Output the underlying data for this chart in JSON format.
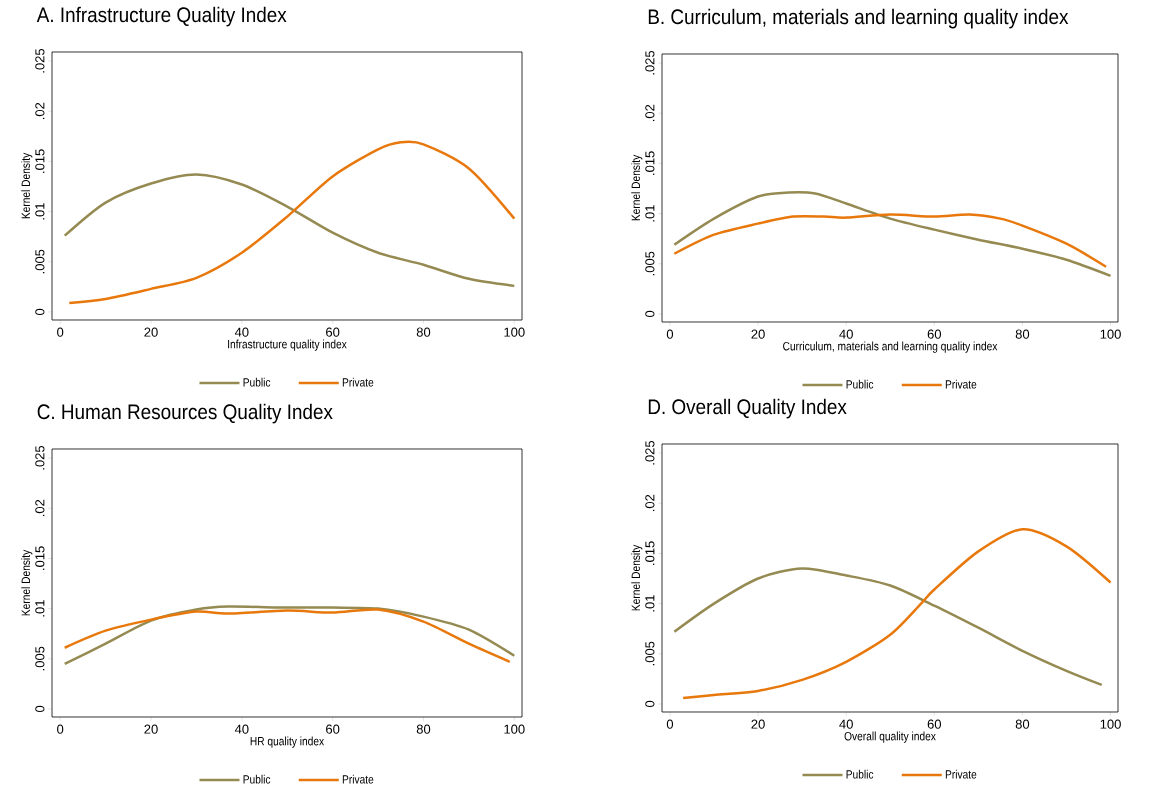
{
  "chart_data": [
    {
      "type": "line",
      "title": "A.  Infrastructure Quality Index",
      "xlabel": "Infrastructure quality index",
      "ylabel": "Kernel Density",
      "legend": "bottom",
      "xlim": [
        -1.8,
        101.7
      ],
      "ylim": [
        -0.0008,
        0.0259
      ],
      "xticks": [
        0,
        20,
        40,
        60,
        80,
        100
      ],
      "yticks": [
        0,
        {
          "value": 0.005,
          "label": ".005"
        },
        {
          "value": 0.01,
          "label": ".01"
        },
        {
          "value": 0.015,
          "label": ".015"
        },
        {
          "value": 0.02,
          "label": ".02"
        },
        {
          "value": 0.025,
          "label": ".025"
        }
      ],
      "series": [
        {
          "name": "Public",
          "color": "#958a52",
          "x": [
            1,
            10,
            20,
            30,
            40,
            50,
            60,
            70,
            80,
            90,
            100
          ],
          "values": [
            0.0076,
            0.0109,
            0.0128,
            0.0137,
            0.0127,
            0.0105,
            0.0079,
            0.0059,
            0.0047,
            0.0033,
            0.0026
          ]
        },
        {
          "name": "Private",
          "color": "#e8780c",
          "x": [
            2,
            10,
            20,
            30,
            40,
            50,
            60,
            70,
            75,
            80,
            90,
            100
          ],
          "values": [
            0.0009,
            0.0013,
            0.0023,
            0.0034,
            0.0059,
            0.0095,
            0.0135,
            0.0162,
            0.0169,
            0.0167,
            0.0143,
            0.0093
          ]
        }
      ]
    },
    {
      "type": "line",
      "title": "B.  Curriculum, materials and learning quality index",
      "xlabel": "Curriculum, materials and learning quality index",
      "ylabel": "Kernel Density",
      "legend": "bottom",
      "xlim": [
        -1.8,
        101.7
      ],
      "ylim": [
        -0.0008,
        0.0259
      ],
      "xticks": [
        0,
        20,
        40,
        60,
        80,
        100
      ],
      "yticks": [
        0,
        {
          "value": 0.005,
          "label": ".005"
        },
        {
          "value": 0.01,
          "label": ".01"
        },
        {
          "value": 0.015,
          "label": ".015"
        },
        {
          "value": 0.02,
          "label": ".02"
        },
        {
          "value": 0.025,
          "label": ".025"
        }
      ],
      "series": [
        {
          "name": "Public",
          "color": "#958a52",
          "x": [
            1,
            10,
            20,
            27,
            33,
            40,
            50,
            60,
            70,
            80,
            90,
            100
          ],
          "values": [
            0.0069,
            0.0095,
            0.0117,
            0.0121,
            0.012,
            0.011,
            0.0095,
            0.0084,
            0.0074,
            0.0065,
            0.0054,
            0.0038
          ]
        },
        {
          "name": "Private",
          "color": "#e8780c",
          "x": [
            1,
            10,
            20,
            28,
            35,
            40,
            50,
            60,
            68,
            75,
            80,
            90,
            99
          ],
          "values": [
            0.006,
            0.0079,
            0.009,
            0.0097,
            0.0097,
            0.0096,
            0.0099,
            0.0097,
            0.0099,
            0.0095,
            0.0088,
            0.007,
            0.0047
          ]
        }
      ]
    },
    {
      "type": "line",
      "title": "C.  Human Resources Quality Index",
      "xlabel": "HR quality index",
      "ylabel": "Kernel Density",
      "legend": "bottom",
      "xlim": [
        -1.8,
        101.7
      ],
      "ylim": [
        -0.0008,
        0.0259
      ],
      "xticks": [
        0,
        20,
        40,
        60,
        80,
        100
      ],
      "yticks": [
        0,
        {
          "value": 0.005,
          "label": ".005"
        },
        {
          "value": 0.01,
          "label": ".01"
        },
        {
          "value": 0.015,
          "label": ".015"
        },
        {
          "value": 0.02,
          "label": ".02"
        },
        {
          "value": 0.025,
          "label": ".025"
        }
      ],
      "series": [
        {
          "name": "Public",
          "color": "#958a52",
          "x": [
            1,
            10,
            20,
            30,
            37,
            50,
            60,
            70,
            80,
            90,
            100
          ],
          "values": [
            0.0045,
            0.0065,
            0.0088,
            0.0099,
            0.0102,
            0.0101,
            0.0101,
            0.01,
            0.0092,
            0.0079,
            0.0053
          ]
        },
        {
          "name": "Private",
          "color": "#e8780c",
          "x": [
            1,
            10,
            20,
            30,
            37,
            50,
            60,
            70,
            80,
            90,
            99
          ],
          "values": [
            0.0061,
            0.0078,
            0.0089,
            0.0097,
            0.0095,
            0.0098,
            0.0096,
            0.0099,
            0.0087,
            0.0065,
            0.0047
          ]
        }
      ]
    },
    {
      "type": "line",
      "title": "D.  Overall Quality Index",
      "xlabel": "Overall quality index",
      "ylabel": "Kernel Density",
      "legend": "bottom",
      "xlim": [
        -1.8,
        101.7
      ],
      "ylim": [
        -0.0008,
        0.0259
      ],
      "xticks": [
        0,
        20,
        40,
        60,
        80,
        100
      ],
      "yticks": [
        0,
        {
          "value": 0.005,
          "label": ".005"
        },
        {
          "value": 0.01,
          "label": ".01"
        },
        {
          "value": 0.015,
          "label": ".015"
        },
        {
          "value": 0.02,
          "label": ".02"
        },
        {
          "value": 0.025,
          "label": ".025"
        }
      ],
      "series": [
        {
          "name": "Public",
          "color": "#958a52",
          "x": [
            1,
            10,
            20,
            30,
            40,
            50,
            60,
            70,
            80,
            90,
            98
          ],
          "values": [
            0.0072,
            0.01,
            0.0125,
            0.0135,
            0.0128,
            0.0118,
            0.0098,
            0.0076,
            0.0053,
            0.0033,
            0.0019
          ]
        },
        {
          "name": "Private",
          "color": "#e8780c",
          "x": [
            3,
            10,
            20,
            30,
            40,
            50,
            57,
            60,
            70,
            80,
            90,
            100
          ],
          "values": [
            0.0006,
            0.0009,
            0.0013,
            0.0024,
            0.0042,
            0.0069,
            0.01,
            0.0114,
            0.0152,
            0.0174,
            0.0157,
            0.0121
          ]
        }
      ]
    }
  ]
}
